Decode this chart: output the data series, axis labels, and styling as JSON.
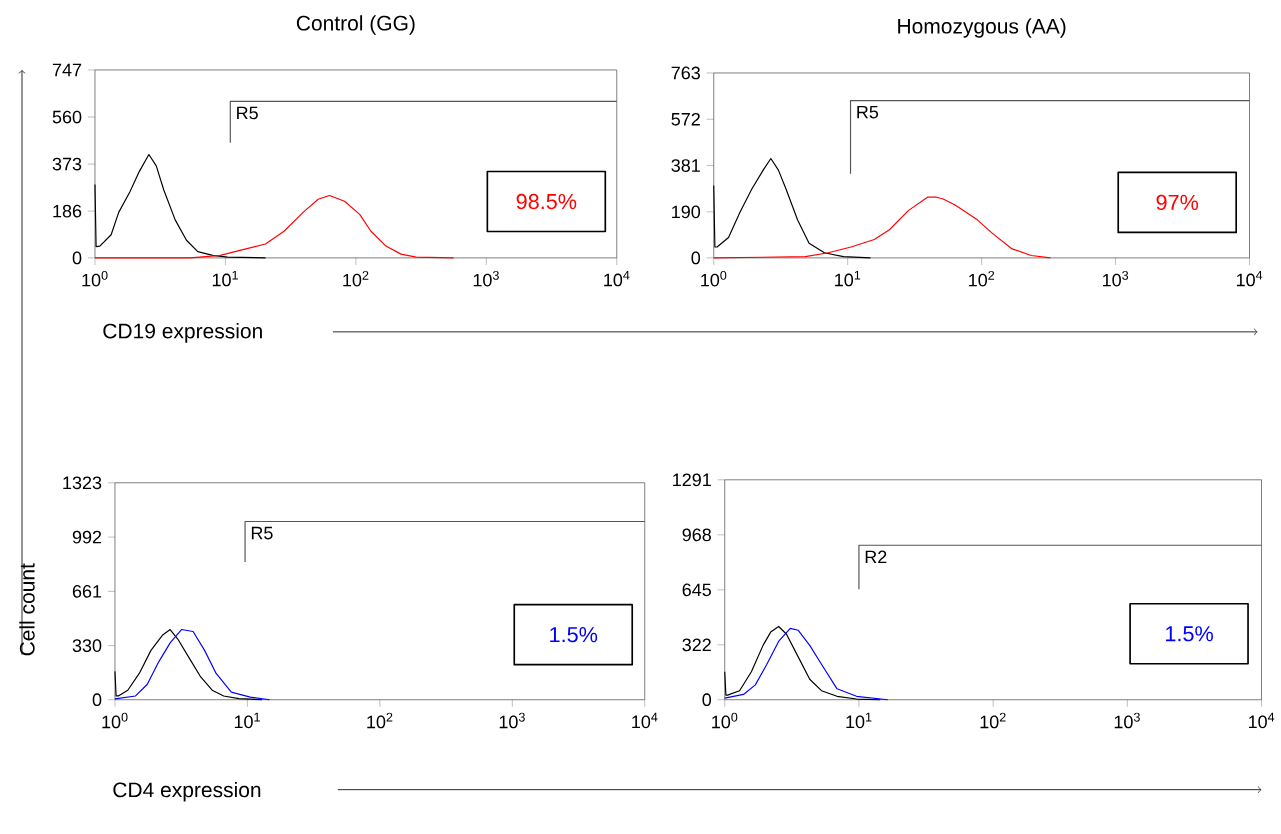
{
  "chart_data": [
    {
      "type": "line",
      "title": "Control (GG)",
      "xlabel": "CD19 expression",
      "log": "x",
      "xlim": [
        1,
        10000
      ],
      "xticks": [
        {
          "value": 1,
          "label": "10$^{0}$"
        },
        {
          "value": 10,
          "label": "10$^{1}$"
        },
        {
          "value": 100,
          "label": "10$^{2}$"
        },
        {
          "value": 1000,
          "label": "10$^{3}$"
        },
        {
          "value": 10000,
          "label": "10$^{4}$"
        }
      ],
      "ylim": [
        0,
        747
      ],
      "yticks": [
        0,
        186,
        373,
        560,
        747
      ],
      "series": [
        {
          "color": "#000000",
          "x": [
            1,
            1.02,
            1.09,
            1.33,
            1.52,
            1.85,
            2.19,
            2.59,
            2.95,
            3.37,
            4.12,
            5.03,
            6.14,
            8.0,
            10.4,
            20.3
          ],
          "values": [
            292,
            45,
            47,
            92,
            181,
            262,
            344,
            411,
            366,
            270,
            151,
            70,
            25,
            10,
            3,
            0
          ]
        },
        {
          "color": "#ff0000",
          "x": [
            1,
            5.37,
            9.14,
            13.6,
            20.3,
            28.3,
            39.4,
            51.4,
            62.8,
            81.9,
            107,
            130,
            170,
            222,
            290,
            562
          ],
          "values": [
            0,
            0,
            10,
            33,
            55,
            107,
            181,
            233,
            248,
            225,
            173,
            107,
            47,
            15,
            3,
            0
          ]
        },
        {
          "color": "#555555",
          "x": [
            10.9,
            10.9,
            10000
          ],
          "values": [
            458,
            622,
            622
          ]
        }
      ],
      "annotations": [
        "98.5%",
        {
          "text": "R5",
          "x": 10.9,
          "y": 622
        }
      ]
    },
    {
      "type": "line",
      "title": "Homozygous (AA)",
      "log": "x",
      "xlim": [
        1,
        10000
      ],
      "xticks": [
        {
          "value": 1,
          "label": "10$^{0}$"
        },
        {
          "value": 10,
          "label": "10$^{1}$"
        },
        {
          "value": 100,
          "label": "10$^{2}$"
        },
        {
          "value": 1000,
          "label": "10$^{3}$"
        },
        {
          "value": 10000,
          "label": "10$^{4}$"
        }
      ],
      "ylim": [
        0,
        763
      ],
      "yticks": [
        0,
        190,
        381,
        572,
        763
      ],
      "series": [
        {
          "color": "#000000",
          "x": [
            1,
            1.02,
            1.06,
            1.29,
            1.57,
            1.92,
            2.34,
            2.67,
            3.04,
            3.47,
            4.23,
            5.15,
            6.7,
            9.31,
            14.8
          ],
          "values": [
            299,
            45,
            45,
            84,
            188,
            283,
            362,
            410,
            362,
            283,
            156,
            60,
            21,
            5,
            0
          ]
        },
        {
          "color": "#ff0000",
          "x": [
            1,
            4.82,
            7.16,
            10.6,
            15.8,
            20.5,
            28.5,
            39.7,
            45.5,
            51.6,
            62.9,
            76.6,
            93.3,
            121,
            169,
            235,
            326
          ],
          "values": [
            0,
            5,
            21,
            45,
            76,
            116,
            196,
            251,
            251,
            243,
            219,
            188,
            156,
            100,
            37,
            10,
            0
          ]
        },
        {
          "color": "#555555",
          "x": [
            10.5,
            10.5,
            10000
          ],
          "values": [
            347,
            649,
            649
          ]
        }
      ],
      "annotations": [
        "97%",
        {
          "text": "R5",
          "x": 10.5,
          "y": 649
        }
      ]
    },
    {
      "type": "line",
      "xlabel": "CD4 expression",
      "ylabel": "Cell count",
      "log": "x",
      "xlim": [
        1,
        10000
      ],
      "xticks": [
        {
          "value": 1,
          "label": "10$^{0}$"
        },
        {
          "value": 10,
          "label": "10$^{1}$"
        },
        {
          "value": 100,
          "label": "10$^{2}$"
        },
        {
          "value": 1000,
          "label": "10$^{3}$"
        },
        {
          "value": 10000,
          "label": "10$^{4}$"
        }
      ],
      "ylim": [
        0,
        1323
      ],
      "yticks": [
        0,
        330,
        661,
        992,
        1323
      ],
      "series": [
        {
          "color": "#000000",
          "x": [
            1,
            1.02,
            1.06,
            1.25,
            1.53,
            1.87,
            2.28,
            2.61,
            2.98,
            3.64,
            4.44,
            5.42,
            6.62,
            8.63,
            12.9
          ],
          "values": [
            173,
            23,
            23,
            58,
            162,
            301,
            393,
            428,
            370,
            254,
            139,
            58,
            23,
            7,
            0
          ]
        },
        {
          "color": "#0000ff",
          "x": [
            1,
            1.43,
            1.75,
            2.14,
            2.61,
            3.18,
            3.89,
            4.75,
            5.79,
            7.56,
            10.5,
            14.7
          ],
          "values": [
            5,
            23,
            93,
            231,
            347,
            428,
            416,
            301,
            162,
            46,
            16,
            0
          ]
        },
        {
          "color": "#555555",
          "x": [
            9.6,
            9.6,
            10000
          ],
          "values": [
            840,
            1087,
            1087
          ]
        }
      ],
      "annotations": [
        "1.5%",
        {
          "text": "R5",
          "x": 9.6,
          "y": 1087
        }
      ]
    },
    {
      "type": "line",
      "log": "x",
      "xlim": [
        1,
        10000
      ],
      "xticks": [
        {
          "value": 1,
          "label": "10$^{0}$"
        },
        {
          "value": 10,
          "label": "10$^{1}$"
        },
        {
          "value": 100,
          "label": "10$^{2}$"
        },
        {
          "value": 1000,
          "label": "10$^{3}$"
        },
        {
          "value": 10000,
          "label": "10$^{4}$"
        }
      ],
      "ylim": [
        0,
        1291
      ],
      "yticks": [
        0,
        322,
        645,
        968,
        1291
      ],
      "series": [
        {
          "color": "#000000",
          "x": [
            1,
            1.02,
            1.05,
            1.29,
            1.58,
            1.93,
            2.2,
            2.52,
            2.88,
            3.52,
            4.3,
            5.26,
            6.87,
            9.6,
            14.4
          ],
          "values": [
            164,
            27,
            27,
            53,
            164,
            319,
            397,
            430,
            386,
            253,
            120,
            53,
            20,
            4,
            0
          ]
        },
        {
          "color": "#0000ff",
          "x": [
            1,
            1.38,
            1.69,
            2.06,
            2.52,
            3.08,
            3.52,
            4.3,
            5.26,
            6.87,
            9.6,
            16.4
          ],
          "values": [
            9,
            31,
            87,
            208,
            342,
            419,
            408,
            319,
            208,
            64,
            20,
            0
          ]
        },
        {
          "color": "#555555",
          "x": [
            10,
            10,
            10000
          ],
          "values": [
            648,
            907,
            907
          ]
        }
      ],
      "annotations": [
        "1.5%",
        {
          "text": "R2",
          "x": 10,
          "y": 907
        }
      ]
    }
  ]
}
